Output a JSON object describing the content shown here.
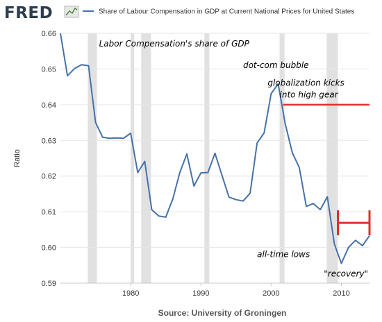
{
  "header": {
    "logo_text": "FRED",
    "legend_label": "Share of Labour Compensation in GDP at Current National Prices for United States"
  },
  "footer": {
    "source": "Source: University of Groningen"
  },
  "colors": {
    "line": "#4572a7",
    "recession": "#e1e1e1",
    "annotation_marker": "#e0302a",
    "grid": "#e6e6e6"
  },
  "chart_data": {
    "type": "line",
    "title": "Share of Labour Compensation in GDP at Current National Prices for United States",
    "ylabel": "Ratio",
    "xlabel": "",
    "xlim": [
      1970,
      2014
    ],
    "ylim": [
      0.59,
      0.66
    ],
    "x_ticks": [
      "1980",
      "1990",
      "2000",
      "2010"
    ],
    "y_ticks": [
      "0.59",
      "0.60",
      "0.61",
      "0.62",
      "0.63",
      "0.64",
      "0.65",
      "0.66"
    ],
    "grid": "horizontal",
    "recession_shading": [
      [
        1973.9,
        1975.2
      ],
      [
        1980.0,
        1980.5
      ],
      [
        1981.5,
        1982.9
      ],
      [
        1990.5,
        1991.2
      ],
      [
        2001.2,
        2001.9
      ],
      [
        2007.9,
        2009.5
      ]
    ],
    "series": [
      {
        "name": "Share of Labour Compensation in GDP at Current National Prices for United States",
        "x": [
          1970,
          1971,
          1972,
          1973,
          1974,
          1975,
          1976,
          1977,
          1978,
          1979,
          1980,
          1981,
          1982,
          1983,
          1984,
          1985,
          1986,
          1987,
          1988,
          1989,
          1990,
          1991,
          1992,
          1993,
          1994,
          1995,
          1996,
          1997,
          1998,
          1999,
          2000,
          2001,
          2002,
          2003,
          2004,
          2005,
          2006,
          2007,
          2008,
          2009,
          2010,
          2011,
          2012,
          2013,
          2014
        ],
        "values": [
          0.66,
          0.6481,
          0.6501,
          0.6512,
          0.6509,
          0.635,
          0.6309,
          0.6306,
          0.6307,
          0.6306,
          0.632,
          0.621,
          0.6241,
          0.6106,
          0.6088,
          0.6085,
          0.6136,
          0.621,
          0.6262,
          0.6172,
          0.6209,
          0.621,
          0.6264,
          0.6202,
          0.6141,
          0.6134,
          0.613,
          0.6152,
          0.6293,
          0.6321,
          0.6431,
          0.6458,
          0.6347,
          0.6266,
          0.6224,
          0.6115,
          0.6123,
          0.6106,
          0.6142,
          0.601,
          0.5955,
          0.6,
          0.602,
          0.6005,
          0.6033
        ]
      }
    ],
    "annotations": [
      {
        "text": "Labor Compensation's share of GDP",
        "x": 1975.5,
        "y": 0.6563
      },
      {
        "text": "dot-com bubble",
        "x": 1996,
        "y": 0.6503
      },
      {
        "text": "globalization kicks",
        "x": 1999.5,
        "y": 0.6453
      },
      {
        "text": "into high gear",
        "x": 2001.2,
        "y": 0.642
      },
      {
        "text": "all-time lows",
        "x": 1998,
        "y": 0.5973
      },
      {
        "text": "\"recovery\"",
        "x": 2007.5,
        "y": 0.5918
      }
    ],
    "markers": [
      {
        "kind": "hline",
        "x0": 2001.7,
        "x1": 2014,
        "y": 0.64
      },
      {
        "kind": "bracket",
        "x0": 2009.5,
        "x1": 2014,
        "y0": 0.6034,
        "y1": 0.6104
      }
    ]
  }
}
